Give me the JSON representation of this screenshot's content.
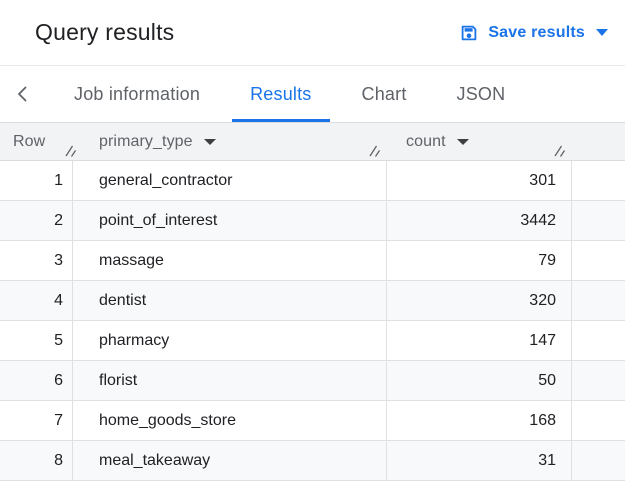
{
  "header": {
    "title": "Query results",
    "save_button": {
      "label": "Save results"
    }
  },
  "tabs": {
    "items": [
      {
        "label": "Job information",
        "active": false
      },
      {
        "label": "Results",
        "active": true
      },
      {
        "label": "Chart",
        "active": false
      },
      {
        "label": "JSON",
        "active": false
      }
    ]
  },
  "results_table": {
    "columns": [
      {
        "key": "row",
        "label": "Row",
        "sortable": false
      },
      {
        "key": "primary_type",
        "label": "primary_type",
        "sortable": true
      },
      {
        "key": "count",
        "label": "count",
        "sortable": true
      }
    ],
    "rows": [
      {
        "row": "1",
        "primary_type": "general_contractor",
        "count": "301"
      },
      {
        "row": "2",
        "primary_type": "point_of_interest",
        "count": "3442"
      },
      {
        "row": "3",
        "primary_type": "massage",
        "count": "79"
      },
      {
        "row": "4",
        "primary_type": "dentist",
        "count": "320"
      },
      {
        "row": "5",
        "primary_type": "pharmacy",
        "count": "147"
      },
      {
        "row": "6",
        "primary_type": "florist",
        "count": "50"
      },
      {
        "row": "7",
        "primary_type": "home_goods_store",
        "count": "168"
      },
      {
        "row": "8",
        "primary_type": "meal_takeaway",
        "count": "31"
      }
    ]
  },
  "icons": {
    "save": "save-icon",
    "caret_down": "chevron-down-icon",
    "scroll_left": "chevron-left-icon",
    "resize": "column-resize-handle-icon"
  },
  "colors": {
    "accent_blue": "#1a73e8",
    "text_primary": "#202124",
    "text_secondary": "#5f6368",
    "header_bg": "#f1f3f4",
    "row_alt_bg": "#f8f9fa",
    "border": "#e0e0e0"
  }
}
